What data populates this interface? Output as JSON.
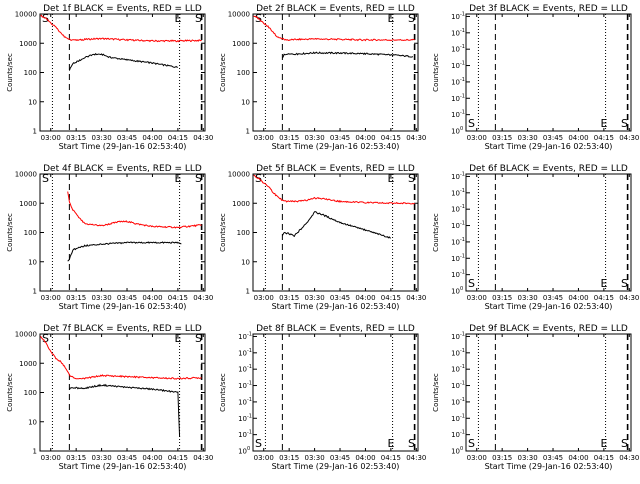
{
  "figure": {
    "xlabel": "Start Time (29-Jan-16 02:53:40)",
    "ylabel": "Counts/sec"
  },
  "chart_data": [
    {
      "type": "line",
      "title": "Det 1f BLACK = Events, RED = LLD",
      "xlabel": "Start Time (29-Jan-16 02:53:40)",
      "ylabel": "Counts/sec",
      "yscale": "log",
      "ylim": [
        1,
        10000
      ],
      "ytick_labels": [
        "1",
        "10",
        "100",
        "1000",
        "10000"
      ],
      "xlim": [
        "02:53:40",
        "04:31:00"
      ],
      "xtick_labels": [
        "03:00",
        "03:15",
        "03:30",
        "03:45",
        "04:00",
        "04:15",
        "04:30"
      ],
      "grid": false,
      "flags": [
        "S",
        "E",
        "S"
      ],
      "series": [
        {
          "color": "#ff0000",
          "x": [
            "02:54",
            "02:57",
            "03:00",
            "03:03",
            "03:06",
            "03:08",
            "03:10",
            "03:12",
            "03:15",
            "03:20",
            "03:30",
            "03:45",
            "04:00",
            "04:15",
            "04:29"
          ],
          "values": [
            9000,
            7000,
            5000,
            3500,
            2200,
            1700,
            1500,
            1300,
            1250,
            1350,
            1450,
            1300,
            1200,
            1200,
            1250
          ]
        },
        {
          "color": "#000000",
          "x": [
            "03:11",
            "03:13",
            "03:16",
            "03:20",
            "03:25",
            "03:30",
            "03:35",
            "03:45",
            "04:00",
            "04:15"
          ],
          "values": [
            120,
            200,
            240,
            320,
            420,
            420,
            330,
            270,
            210,
            150
          ]
        }
      ]
    },
    {
      "type": "line",
      "title": "Det 2f BLACK = Events, RED = LLD",
      "xlabel": "Start Time (29-Jan-16 02:53:40)",
      "ylabel": "Counts/sec",
      "yscale": "log",
      "ylim": [
        1,
        10000
      ],
      "ytick_labels": [
        "1",
        "10",
        "100",
        "1000",
        "10000"
      ],
      "xlim": [
        "02:53:40",
        "04:31:00"
      ],
      "xtick_labels": [
        "03:00",
        "03:15",
        "03:30",
        "03:45",
        "04:00",
        "04:15",
        "04:30"
      ],
      "grid": false,
      "flags": [
        "S",
        "E",
        "S"
      ],
      "series": [
        {
          "color": "#ff0000",
          "x": [
            "02:54",
            "02:57",
            "03:00",
            "03:03",
            "03:06",
            "03:08",
            "03:10",
            "03:12",
            "03:15",
            "03:20",
            "03:30",
            "03:45",
            "04:00",
            "04:15",
            "04:29"
          ],
          "values": [
            9000,
            7000,
            5000,
            3500,
            2200,
            1700,
            1500,
            1350,
            1300,
            1350,
            1400,
            1350,
            1300,
            1300,
            1300
          ]
        },
        {
          "color": "#000000",
          "x": [
            "03:11",
            "03:12",
            "03:15",
            "03:20",
            "03:30",
            "03:45",
            "04:00",
            "04:15",
            "04:28"
          ],
          "values": [
            300,
            400,
            420,
            430,
            470,
            460,
            440,
            400,
            350
          ]
        }
      ]
    },
    {
      "type": "line",
      "title": "Det 3f BLACK = Events, RED = LLD",
      "xlabel": "Start Time (29-Jan-16 02:53:40)",
      "ylabel": "Counts/sec",
      "yscale": "log",
      "ylim": [
        1,
        10000
      ],
      "ytick_labels": [
        "10^0",
        "10^-1",
        "10^-1",
        "10^-1",
        "10^-1",
        "10^-1",
        "10^-1",
        "10^-1"
      ],
      "xlim": [
        "02:53:40",
        "04:31:00"
      ],
      "xtick_labels": [
        "03:00",
        "03:15",
        "03:30",
        "03:45",
        "04:00",
        "04:15",
        "04:30"
      ],
      "grid": false,
      "flags": [
        "S",
        "E",
        "S"
      ],
      "series": []
    },
    {
      "type": "line",
      "title": "Det 4f BLACK = Events, RED = LLD",
      "xlabel": "Start Time (29-Jan-16 02:53:40)",
      "ylabel": "Counts/sec",
      "yscale": "log",
      "ylim": [
        1,
        10000
      ],
      "ytick_labels": [
        "1",
        "10",
        "100",
        "1000",
        "10000"
      ],
      "xlim": [
        "02:53:40",
        "04:31:00"
      ],
      "xtick_labels": [
        "03:00",
        "03:15",
        "03:30",
        "03:45",
        "04:00",
        "04:15",
        "04:30"
      ],
      "grid": false,
      "flags": [
        "S",
        "E",
        "S"
      ],
      "series": [
        {
          "color": "#ff0000",
          "x": [
            "03:10",
            "03:11",
            "03:13",
            "03:16",
            "03:20",
            "03:30",
            "03:40",
            "03:45",
            "03:50",
            "04:00",
            "04:15",
            "04:29"
          ],
          "values": [
            2500,
            1100,
            600,
            350,
            200,
            170,
            230,
            240,
            200,
            160,
            150,
            180
          ]
        },
        {
          "color": "#000000",
          "x": [
            "03:10",
            "03:11",
            "03:13",
            "03:16",
            "03:20",
            "03:30",
            "03:45",
            "04:00",
            "04:15",
            "04:17"
          ],
          "values": [
            10,
            12,
            25,
            30,
            35,
            40,
            45,
            45,
            45,
            40
          ]
        }
      ]
    },
    {
      "type": "line",
      "title": "Det 5f BLACK = Events, RED = LLD",
      "xlabel": "Start Time (29-Jan-16 02:53:40)",
      "ylabel": "Counts/sec",
      "yscale": "log",
      "ylim": [
        1,
        10000
      ],
      "ytick_labels": [
        "1",
        "10",
        "100",
        "1000",
        "10000"
      ],
      "xlim": [
        "02:53:40",
        "04:31:00"
      ],
      "xtick_labels": [
        "03:00",
        "03:15",
        "03:30",
        "03:45",
        "04:00",
        "04:15",
        "04:30"
      ],
      "grid": false,
      "flags": [
        "S",
        "E",
        "S"
      ],
      "series": [
        {
          "color": "#ff0000",
          "x": [
            "02:54",
            "02:57",
            "03:00",
            "03:03",
            "03:06",
            "03:08",
            "03:10",
            "03:12",
            "03:15",
            "03:20",
            "03:25",
            "03:30",
            "03:35",
            "03:40",
            "03:45",
            "04:00",
            "04:15",
            "04:29"
          ],
          "values": [
            9000,
            7000,
            5000,
            3500,
            2200,
            1700,
            1400,
            1200,
            1150,
            1150,
            1250,
            1500,
            1450,
            1250,
            1150,
            1050,
            1000,
            1000
          ]
        },
        {
          "color": "#000000",
          "x": [
            "03:11",
            "03:12",
            "03:15",
            "03:18",
            "03:20",
            "03:25",
            "03:30",
            "03:35",
            "03:45",
            "04:00",
            "04:15"
          ],
          "values": [
            80,
            100,
            90,
            75,
            100,
            200,
            500,
            400,
            220,
            120,
            65
          ]
        }
      ]
    },
    {
      "type": "line",
      "title": "Det 6f BLACK = Events, RED = LLD",
      "xlabel": "Start Time (29-Jan-16 02:53:40)",
      "ylabel": "Counts/sec",
      "yscale": "log",
      "ylim": [
        1,
        10000
      ],
      "ytick_labels": [
        "10^0",
        "10^-1",
        "10^-1",
        "10^-1",
        "10^-1",
        "10^-1",
        "10^-1",
        "10^-1"
      ],
      "xlim": [
        "02:53:40",
        "04:31:00"
      ],
      "xtick_labels": [
        "03:00",
        "03:15",
        "03:30",
        "03:45",
        "04:00",
        "04:15",
        "04:30"
      ],
      "grid": false,
      "flags": [
        "S",
        "E",
        "S"
      ],
      "series": []
    },
    {
      "type": "line",
      "title": "Det 7f BLACK = Events, RED = LLD",
      "xlabel": "Start Time (29-Jan-16 02:53:40)",
      "ylabel": "Counts/sec",
      "yscale": "log",
      "ylim": [
        1,
        10000
      ],
      "ytick_labels": [
        "1",
        "10",
        "100",
        "1000",
        "10000"
      ],
      "xlim": [
        "02:53:40",
        "04:31:00"
      ],
      "xtick_labels": [
        "03:00",
        "03:15",
        "03:30",
        "03:45",
        "04:00",
        "04:15",
        "04:30"
      ],
      "grid": false,
      "flags": [
        "S",
        "E",
        "S"
      ],
      "series": [
        {
          "color": "#ff0000",
          "x": [
            "02:54",
            "02:57",
            "03:00",
            "03:03",
            "03:06",
            "03:08",
            "03:10",
            "03:12",
            "03:15",
            "03:20",
            "03:30",
            "03:45",
            "04:00",
            "04:15",
            "04:29"
          ],
          "values": [
            8500,
            5000,
            2500,
            1500,
            1100,
            800,
            500,
            350,
            300,
            300,
            380,
            350,
            320,
            300,
            320
          ]
        },
        {
          "color": "#000000",
          "x": [
            "03:11",
            "03:13",
            "03:16",
            "03:20",
            "03:30",
            "03:45",
            "04:00",
            "04:10",
            "04:15",
            "04:16"
          ],
          "values": [
            130,
            150,
            140,
            140,
            180,
            150,
            130,
            110,
            100,
            3
          ]
        }
      ]
    },
    {
      "type": "line",
      "title": "Det 8f BLACK = Events, RED = LLD",
      "xlabel": "Start Time (29-Jan-16 02:53:40)",
      "ylabel": "Counts/sec",
      "yscale": "log",
      "ylim": [
        1,
        10000
      ],
      "ytick_labels": [
        "10^0",
        "10^-1",
        "10^-1",
        "10^-1",
        "10^-1",
        "10^-1",
        "10^-1",
        "10^-1"
      ],
      "xlim": [
        "02:53:40",
        "04:31:00"
      ],
      "xtick_labels": [
        "03:00",
        "03:15",
        "03:30",
        "03:45",
        "04:00",
        "04:15",
        "04:30"
      ],
      "grid": false,
      "flags": [
        "S",
        "E",
        "S"
      ],
      "series": []
    },
    {
      "type": "line",
      "title": "Det 9f BLACK = Events, RED = LLD",
      "xlabel": "Start Time (29-Jan-16 02:53:40)",
      "ylabel": "Counts/sec",
      "yscale": "log",
      "ylim": [
        1,
        10000
      ],
      "ytick_labels": [
        "10^0",
        "10^-1",
        "10^-1",
        "10^-1",
        "10^-1",
        "10^-1",
        "10^-1",
        "10^-1"
      ],
      "xlim": [
        "02:53:40",
        "04:31:00"
      ],
      "xtick_labels": [
        "03:00",
        "03:15",
        "03:30",
        "03:45",
        "04:00",
        "04:15",
        "04:30"
      ],
      "grid": false,
      "flags": [
        "S",
        "E",
        "S"
      ],
      "series": []
    }
  ]
}
